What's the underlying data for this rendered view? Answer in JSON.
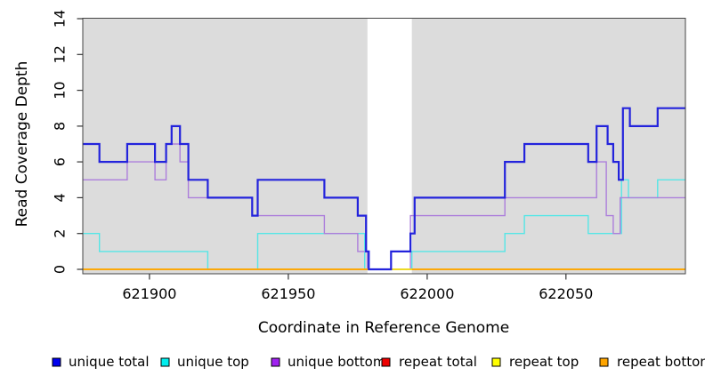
{
  "figure": {
    "xlabel": "Coordinate in Reference Genome",
    "ylabel": "Read Coverage Depth"
  },
  "legend": {
    "items": [
      {
        "label": "unique total",
        "color": "#0000EE"
      },
      {
        "label": "unique top",
        "color": "#00EEEE"
      },
      {
        "label": "unique bottom",
        "color": "#A020F0"
      },
      {
        "label": "repeat total",
        "color": "#EE0000"
      },
      {
        "label": "repeat top",
        "color": "#FFFF00"
      },
      {
        "label": "repeat bottom",
        "color": "#FFA500"
      }
    ]
  },
  "chart_data": {
    "type": "line",
    "step": true,
    "title": "",
    "xlabel": "Coordinate in Reference Genome",
    "ylabel": "Read Coverage Depth",
    "xlim": [
      621876,
      622093
    ],
    "ylim": [
      0,
      14
    ],
    "x_ticks": [
      621900,
      621950,
      622000,
      622050
    ],
    "y_ticks": [
      0,
      2,
      4,
      6,
      8,
      10,
      12,
      14
    ],
    "grid": false,
    "legend_position": "bottom",
    "plot_background": "#DCDCDC",
    "masked_region": {
      "x_start": 621978.5,
      "x_end": 621994.5,
      "color": "#FFFFFF"
    },
    "series": [
      {
        "name": "unique top",
        "color": "#55E6E6",
        "line_width": 1.4,
        "x_end": 622093,
        "steps": [
          [
            621876,
            2
          ],
          [
            621882,
            1
          ],
          [
            621921,
            0
          ],
          [
            621939,
            2
          ],
          [
            621977.5,
            0
          ],
          [
            621994.5,
            1
          ],
          [
            622028,
            2
          ],
          [
            622035,
            3
          ],
          [
            622058,
            2
          ],
          [
            622070,
            5
          ],
          [
            622072.5,
            4
          ],
          [
            622083,
            5
          ]
        ]
      },
      {
        "name": "unique bottom",
        "color": "#AC7EDB",
        "line_width": 1.4,
        "x_end": 622093,
        "steps": [
          [
            621876,
            5
          ],
          [
            621892,
            6
          ],
          [
            621902,
            5
          ],
          [
            621906,
            7
          ],
          [
            621911,
            6
          ],
          [
            621914,
            4
          ],
          [
            621937,
            3
          ],
          [
            621963,
            2
          ],
          [
            621975,
            1
          ],
          [
            621978.5,
            0
          ],
          [
            621994,
            3
          ],
          [
            622028,
            4
          ],
          [
            622061,
            6
          ],
          [
            622064.5,
            3
          ],
          [
            622067,
            2
          ],
          [
            622069.5,
            4
          ]
        ]
      },
      {
        "name": "repeat total",
        "color": "#CC2244",
        "line_width": 1.4,
        "x_end": 622093,
        "steps": [
          [
            621876,
            0
          ]
        ]
      },
      {
        "name": "repeat top",
        "color": "#FFFF00",
        "line_width": 1.4,
        "x_end": 622093,
        "steps": [
          [
            621876,
            0
          ]
        ]
      },
      {
        "name": "repeat bottom",
        "color": "#FFA500",
        "line_width": 1.7,
        "x_end": 622093,
        "gap": [
          621978.5,
          621994.5
        ],
        "steps": [
          [
            621876,
            0
          ]
        ]
      },
      {
        "name": "unique total",
        "color": "#2323DC",
        "line_width": 2.2,
        "x_end": 622093,
        "steps": [
          [
            621876,
            7
          ],
          [
            621882,
            6
          ],
          [
            621892,
            7
          ],
          [
            621902,
            6
          ],
          [
            621906,
            7
          ],
          [
            621908,
            8
          ],
          [
            621911,
            7
          ],
          [
            621914,
            5
          ],
          [
            621921,
            4
          ],
          [
            621937,
            3
          ],
          [
            621939,
            5
          ],
          [
            621963,
            4
          ],
          [
            621975,
            3
          ],
          [
            621978,
            1
          ],
          [
            621979,
            0
          ],
          [
            621987,
            1
          ],
          [
            621994,
            2
          ],
          [
            621995.5,
            4
          ],
          [
            622028,
            6
          ],
          [
            622035,
            7
          ],
          [
            622058,
            6
          ],
          [
            622061,
            8
          ],
          [
            622065,
            7
          ],
          [
            622067,
            6
          ],
          [
            622069,
            5
          ],
          [
            622070.5,
            9
          ],
          [
            622073,
            8
          ],
          [
            622083,
            9
          ]
        ]
      }
    ]
  }
}
